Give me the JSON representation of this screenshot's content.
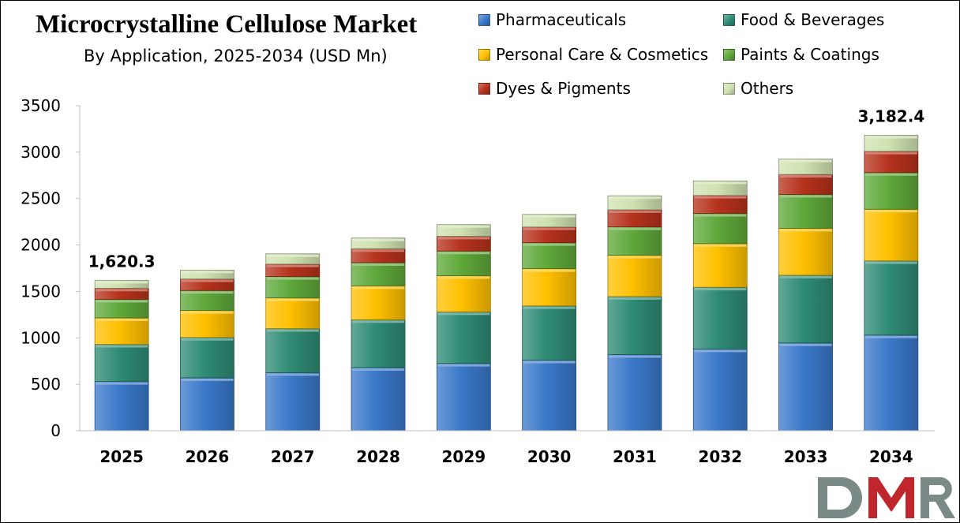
{
  "chart_data": {
    "type": "bar",
    "stacked": true,
    "title": "Microcrystalline Cellulose Market",
    "subtitle": "By Application, 2025-2034 (USD Mn)",
    "xlabel": "",
    "ylabel": "",
    "ylim": [
      0,
      3500
    ],
    "yticks": [
      0,
      500,
      1000,
      1500,
      2000,
      2500,
      3000,
      3500
    ],
    "grid": false,
    "legend_position": "top-right",
    "categories": [
      "2025",
      "2026",
      "2027",
      "2028",
      "2029",
      "2030",
      "2031",
      "2032",
      "2033",
      "2034"
    ],
    "series": [
      {
        "name": "Pharmaceuticals",
        "color": "#3a78c9",
        "values": [
          530,
          570,
          625,
          680,
          725,
          760,
          820,
          880,
          945,
          1030
        ]
      },
      {
        "name": "Food & Beverages",
        "color": "#2e8b74",
        "values": [
          400,
          435,
          475,
          515,
          555,
          585,
          625,
          665,
          730,
          800
        ]
      },
      {
        "name": "Personal Care & Cosmetics",
        "color": "#ffc000",
        "values": [
          285,
          290,
          330,
          365,
          390,
          400,
          445,
          470,
          505,
          555
        ]
      },
      {
        "name": "Paints & Coatings",
        "color": "#5fa83a",
        "values": [
          200,
          215,
          230,
          250,
          265,
          280,
          305,
          325,
          365,
          395
        ]
      },
      {
        "name": "Dyes & Pigments",
        "color": "#b5321c",
        "values": [
          120,
          125,
          135,
          150,
          160,
          170,
          185,
          195,
          215,
          230
        ]
      },
      {
        "name": "Others",
        "color": "#cfe2b0",
        "values": [
          85,
          95,
          110,
          115,
          125,
          135,
          150,
          155,
          165,
          172
        ]
      }
    ],
    "annotations": [
      {
        "category": "2025",
        "text": "1,620.3"
      },
      {
        "category": "2034",
        "text": "3,182.4"
      }
    ]
  },
  "logo": {
    "text": "DMR",
    "colors": [
      "#7a8a86",
      "#c0272d"
    ]
  }
}
